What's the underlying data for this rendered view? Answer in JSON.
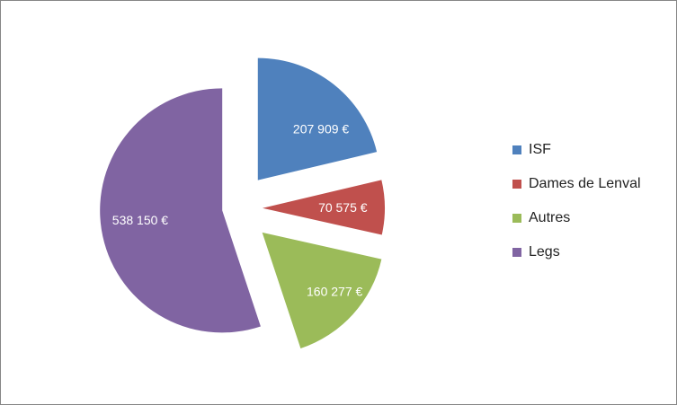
{
  "chart_data": {
    "type": "pie",
    "categories": [
      "ISF",
      "Dames de Lenval",
      "Autres",
      "Legs"
    ],
    "values": [
      207909,
      70575,
      160277,
      538150
    ],
    "data_labels": [
      "207 909 €",
      "70 575 €",
      "160 277 €",
      "538 150 €"
    ],
    "colors": [
      "#4F81BD",
      "#C0504D",
      "#9BBB59",
      "#8064A2"
    ],
    "exploded": true,
    "start_angle_deg": 0,
    "direction": "clockwise",
    "legend_position": "right"
  },
  "legend": {
    "items": [
      {
        "label": "ISF",
        "color": "#4F81BD"
      },
      {
        "label": "Dames de Lenval",
        "color": "#C0504D"
      },
      {
        "label": "Autres",
        "color": "#9BBB59"
      },
      {
        "label": "Legs",
        "color": "#8064A2"
      }
    ]
  }
}
